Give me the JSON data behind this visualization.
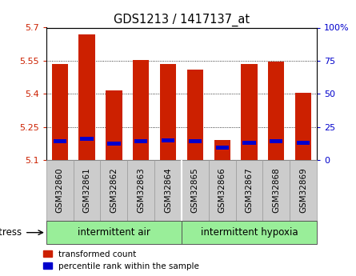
{
  "title": "GDS1213 / 1417137_at",
  "samples": [
    "GSM32860",
    "GSM32861",
    "GSM32862",
    "GSM32863",
    "GSM32864",
    "GSM32865",
    "GSM32866",
    "GSM32867",
    "GSM32868",
    "GSM32869"
  ],
  "red_values": [
    5.535,
    5.67,
    5.415,
    5.555,
    5.535,
    5.51,
    5.19,
    5.535,
    5.545,
    5.405
  ],
  "blue_values": [
    5.185,
    5.195,
    5.175,
    5.185,
    5.19,
    5.185,
    5.155,
    5.18,
    5.185,
    5.18
  ],
  "bar_base": 5.1,
  "ylim_left": [
    5.1,
    5.7
  ],
  "ylim_right": [
    0,
    100
  ],
  "yticks_left": [
    5.1,
    5.25,
    5.4,
    5.55,
    5.7
  ],
  "yticks_right": [
    0,
    25,
    50,
    75,
    100
  ],
  "group1_label": "intermittent air",
  "group2_label": "intermittent hypoxia",
  "stress_label": "stress",
  "legend1": "transformed count",
  "legend2": "percentile rank within the sample",
  "red_color": "#CC2000",
  "blue_color": "#0000CC",
  "group_bg_color": "#99EE99",
  "xtick_bg_color": "#CCCCCC",
  "bar_width": 0.6,
  "title_fontsize": 10.5,
  "tick_fontsize": 8,
  "xtick_fontsize": 7.5,
  "group_label_fontsize": 8.5,
  "legend_fontsize": 7.5,
  "stress_fontsize": 8.5,
  "grid_ticks": [
    5.25,
    5.4,
    5.55
  ],
  "n_group1": 5,
  "n_group2": 5
}
